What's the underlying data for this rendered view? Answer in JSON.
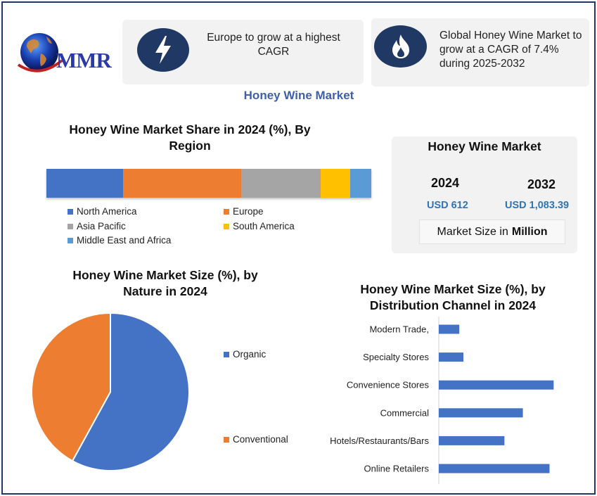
{
  "logo": {
    "text": "MMR"
  },
  "info": [
    {
      "icon": "lightning-icon",
      "text": "Europe to grow at a highest CAGR"
    },
    {
      "icon": "flame-icon",
      "text": "Global Honey Wine Market to grow at a CAGR of 7.4% during 2025-2032"
    }
  ],
  "main_title": "Honey Wine Market",
  "market_box": {
    "title": "Honey Wine Market",
    "year1": "2024",
    "value1": "USD 612",
    "year2": "2032",
    "value2": "USD 1,083.39",
    "size_prefix": "Market Size in",
    "size_unit": "Million"
  },
  "colors": {
    "blue": "#4472c4",
    "orange": "#ed7d31",
    "gray": "#a5a5a5",
    "yellow": "#ffc000",
    "lightblue": "#5b9bd5",
    "navy": "#1f3864",
    "title_blue": "#3f5fa8",
    "value_blue": "#2e75b6"
  },
  "chart_data": [
    {
      "type": "bar",
      "stacked": true,
      "orientation": "horizontal",
      "title": "Honey Wine Market Share in 2024 (%), By Region",
      "series": [
        {
          "name": "North America",
          "value": 23.5,
          "color": "#4472c4"
        },
        {
          "name": "Europe",
          "value": 36.5,
          "color": "#ed7d31"
        },
        {
          "name": "Asia Pacific",
          "value": 24.5,
          "color": "#a5a5a5"
        },
        {
          "name": "South America",
          "value": 9,
          "color": "#ffc000"
        },
        {
          "name": "Middle East and Africa",
          "value": 6.5,
          "color": "#5b9bd5"
        }
      ],
      "legend": "bottom"
    },
    {
      "type": "pie",
      "title": "Honey Wine Market Size (%), by Nature in 2024",
      "categories": [
        "Organic",
        "Conventional"
      ],
      "values": [
        58,
        42
      ],
      "colors": [
        "#4472c4",
        "#ed7d31"
      ],
      "legend": "right"
    },
    {
      "type": "bar",
      "orientation": "horizontal",
      "title": "Honey Wine Market Size (%), by Distribution Channel in 2024",
      "categories": [
        "Modern Trade,",
        "Specialty Stores",
        "Convenience Stores",
        "Commercial",
        "Hotels/Restaurants/Bars",
        "Online Retailers"
      ],
      "values": [
        5,
        6,
        28,
        20.5,
        16,
        27
      ],
      "xlim": [
        0,
        30
      ],
      "color": "#4472c4",
      "grid": false
    }
  ]
}
